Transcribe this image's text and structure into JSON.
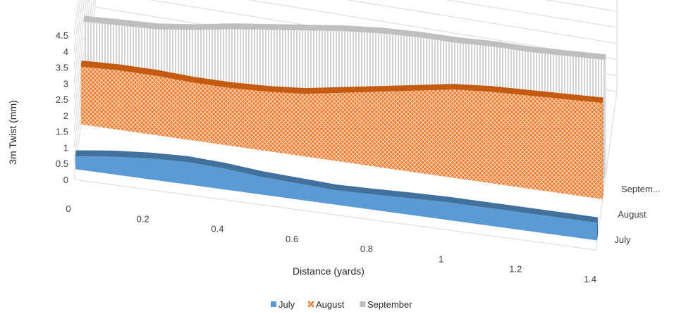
{
  "chart_data": {
    "type": "area",
    "subtype": "3d-area",
    "title": "",
    "xlabel": "Distance (yards)",
    "ylabel": "3m Twist (mm)",
    "ylim": [
      0,
      4.5
    ],
    "yticks": [
      "0",
      "0.5",
      "1",
      "1.5",
      "2",
      "2.5",
      "3",
      "3.5",
      "4",
      "4.5"
    ],
    "xlim": [
      0,
      1.4
    ],
    "xticks": [
      "0",
      "0.2",
      "0.4",
      "0.6",
      "0.8",
      "1",
      "1.2",
      "1.4"
    ],
    "depth_labels": [
      "July",
      "August",
      "Septem..."
    ],
    "legend_position": "bottom",
    "grid": true,
    "x": [
      0,
      0.1,
      0.2,
      0.3,
      0.4,
      0.5,
      0.6,
      0.7,
      0.8,
      0.9,
      1.0,
      1.1,
      1.2,
      1.3,
      1.4
    ],
    "series": [
      {
        "name": "July",
        "color": "#5b9bd5",
        "pattern": "solid",
        "values": [
          0.4,
          0.55,
          0.65,
          0.7,
          0.65,
          0.55,
          0.5,
          0.45,
          0.48,
          0.52,
          0.55,
          0.55,
          0.55,
          0.55,
          0.55
        ]
      },
      {
        "name": "August",
        "color": "#ed7d31",
        "pattern": "crosshatch",
        "values": [
          1.8,
          1.85,
          1.85,
          1.8,
          1.8,
          1.85,
          1.95,
          2.15,
          2.35,
          2.55,
          2.75,
          2.85,
          2.9,
          2.95,
          3.0
        ]
      },
      {
        "name": "September",
        "color": "#a5a5a5",
        "pattern": "vertical",
        "values": [
          2.5,
          2.55,
          2.6,
          2.75,
          2.95,
          3.1,
          3.25,
          3.4,
          3.5,
          3.55,
          3.55,
          3.6,
          3.6,
          3.65,
          3.7
        ]
      }
    ]
  }
}
